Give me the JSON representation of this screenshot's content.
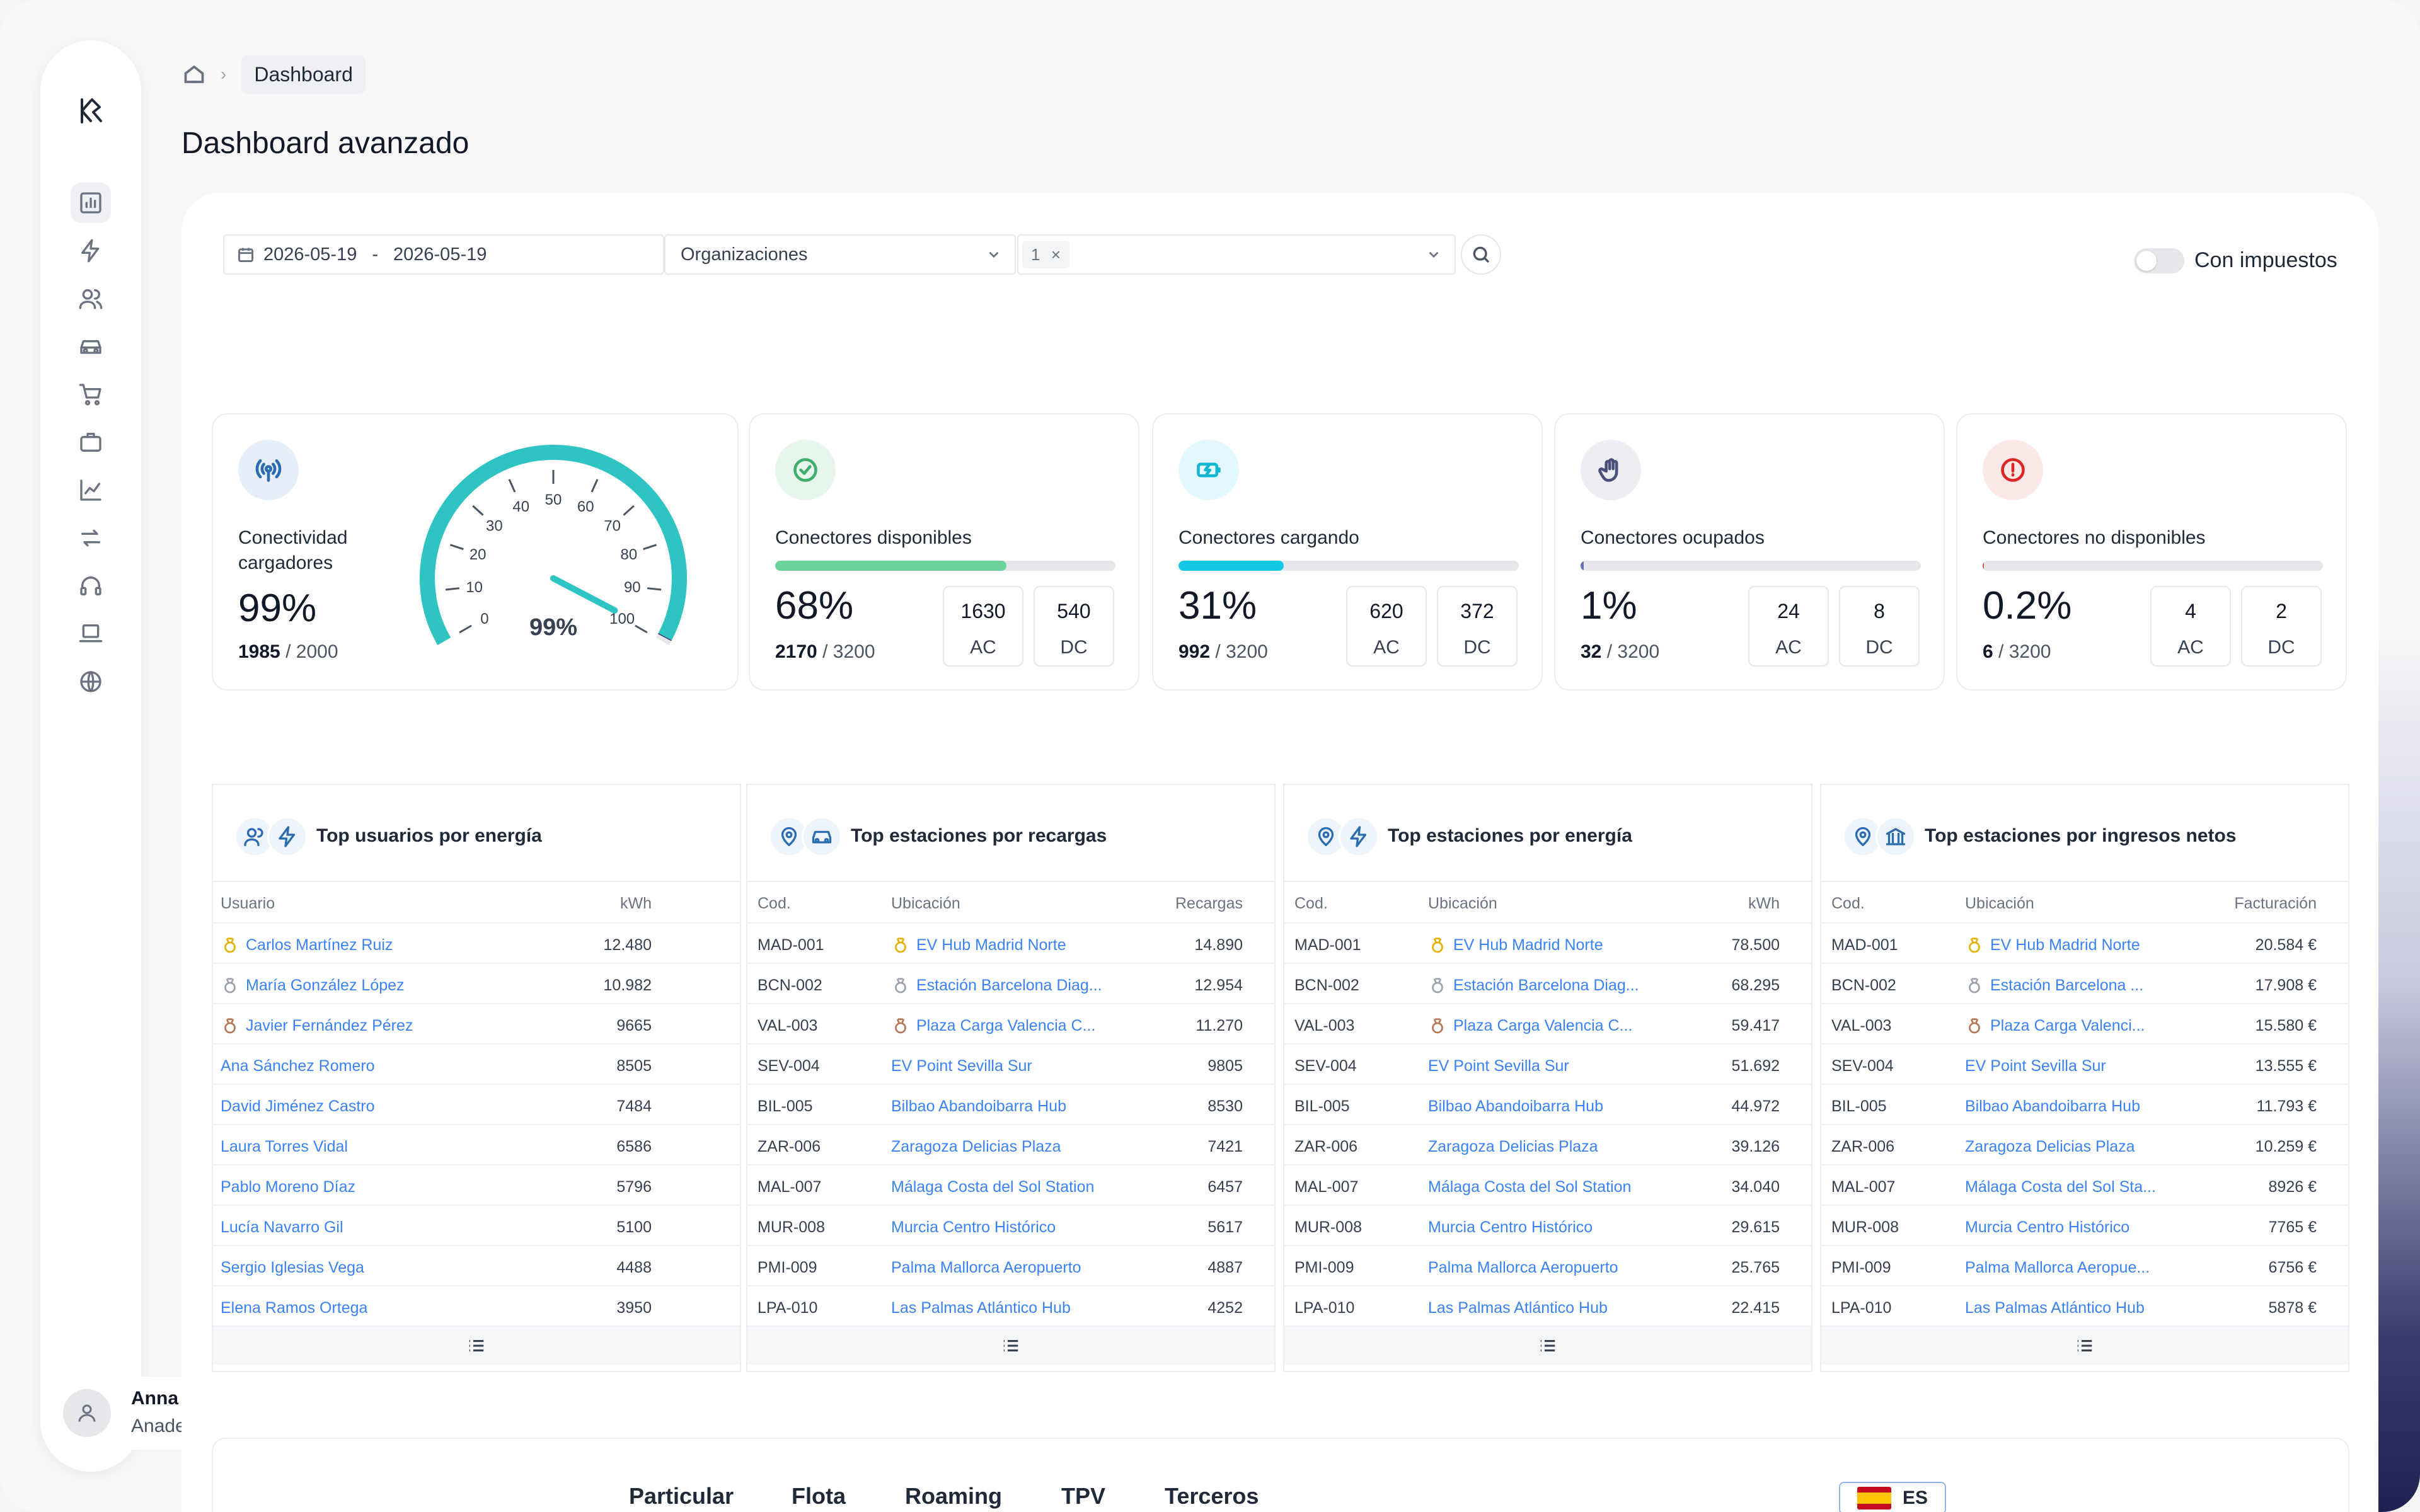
{
  "breadcrumb": {
    "current": "Dashboard"
  },
  "page": {
    "title": "Dashboard avanzado"
  },
  "filters": {
    "date_from": "2026-05-19",
    "date_sep": "-",
    "date_to": "2026-05-19",
    "organizations_placeholder": "Organizaciones",
    "selected_chip": "1",
    "tax_toggle_label": "Con impuestos",
    "tax_toggle_on": false
  },
  "user": {
    "name": "Anna de lucas",
    "email": "Anadelucas@kawat.io"
  },
  "sidebar": {
    "items": [
      "dashboard-icon",
      "bolt-icon",
      "users-icon",
      "car-icon",
      "cart-icon",
      "briefcase-icon",
      "chart-icon",
      "transfer-icon",
      "headset-icon",
      "laptop-icon",
      "globe-icon"
    ]
  },
  "cards": [
    {
      "label_1": "Conectividad",
      "label_2": "cargadores",
      "pct": "99%",
      "count": "1985",
      "total": "/ 2000",
      "gauge_value": 99,
      "gauge_label": "99%",
      "gauge_ticks": [
        "0",
        "10",
        "20",
        "30",
        "40",
        "50",
        "60",
        "70",
        "80",
        "90",
        "100"
      ],
      "color": "#2ec4c4"
    },
    {
      "label": "Conectores disponibles",
      "pct": "68%",
      "count": "2170",
      "total": "/ 3200",
      "bar": 0.68,
      "ac": "1630",
      "dc": "540",
      "ac_label": "AC",
      "dc_label": "DC",
      "color": "#6ad39a"
    },
    {
      "label": "Conectores cargando",
      "pct": "31%",
      "count": "992",
      "total": "/ 3200",
      "bar": 0.31,
      "ac": "620",
      "dc": "372",
      "ac_label": "AC",
      "dc_label": "DC",
      "color": "#13c8e6"
    },
    {
      "label": "Conectores ocupados",
      "pct": "1%",
      "count": "32",
      "total": "/ 3200",
      "bar": 0.01,
      "ac": "24",
      "dc": "8",
      "ac_label": "AC",
      "dc_label": "DC",
      "color": "#6b6fb8"
    },
    {
      "label": "Conectores no disponibles",
      "pct": "0.2%",
      "count": "6",
      "total": "/ 3200",
      "bar": 0.002,
      "ac": "4",
      "dc": "2",
      "ac_label": "AC",
      "dc_label": "DC",
      "color": "#ef4444"
    }
  ],
  "tables": [
    {
      "title": "Top usuarios por energía",
      "cols": [
        "Usuario",
        "kWh"
      ],
      "rows": [
        [
          "Carlos Martínez Ruiz",
          "12.480"
        ],
        [
          "María González López",
          "10.982"
        ],
        [
          "Javier Fernández Pérez",
          "9665"
        ],
        [
          "Ana Sánchez Romero",
          "8505"
        ],
        [
          "David Jiménez Castro",
          "7484"
        ],
        [
          "Laura Torres Vidal",
          "6586"
        ],
        [
          "Pablo Moreno Díaz",
          "5796"
        ],
        [
          "Lucía Navarro Gil",
          "5100"
        ],
        [
          "Sergio Iglesias Vega",
          "4488"
        ],
        [
          "Elena Ramos Ortega",
          "3950"
        ]
      ]
    },
    {
      "title": "Top estaciones por recargas",
      "cols": [
        "Cod.",
        "Ubicación",
        "Recargas"
      ],
      "rows": [
        [
          "MAD-001",
          "EV Hub Madrid Norte",
          "14.890"
        ],
        [
          "BCN-002",
          "Estación Barcelona Diag...",
          "12.954"
        ],
        [
          "VAL-003",
          "Plaza Carga Valencia C...",
          "11.270"
        ],
        [
          "SEV-004",
          "EV Point Sevilla Sur",
          "9805"
        ],
        [
          "BIL-005",
          "Bilbao Abandoibarra Hub",
          "8530"
        ],
        [
          "ZAR-006",
          "Zaragoza Delicias Plaza",
          "7421"
        ],
        [
          "MAL-007",
          "Málaga Costa del Sol Station",
          "6457"
        ],
        [
          "MUR-008",
          "Murcia Centro Histórico",
          "5617"
        ],
        [
          "PMI-009",
          "Palma Mallorca Aeropuerto",
          "4887"
        ],
        [
          "LPA-010",
          "Las Palmas Atlántico Hub",
          "4252"
        ]
      ]
    },
    {
      "title": "Top estaciones por energía",
      "cols": [
        "Cod.",
        "Ubicación",
        "kWh"
      ],
      "rows": [
        [
          "MAD-001",
          "EV Hub Madrid Norte",
          "78.500"
        ],
        [
          "BCN-002",
          "Estación Barcelona Diag...",
          "68.295"
        ],
        [
          "VAL-003",
          "Plaza Carga Valencia C...",
          "59.417"
        ],
        [
          "SEV-004",
          "EV Point Sevilla Sur",
          "51.692"
        ],
        [
          "BIL-005",
          "Bilbao Abandoibarra Hub",
          "44.972"
        ],
        [
          "ZAR-006",
          "Zaragoza Delicias Plaza",
          "39.126"
        ],
        [
          "MAL-007",
          "Málaga Costa del Sol Station",
          "34.040"
        ],
        [
          "MUR-008",
          "Murcia Centro Histórico",
          "29.615"
        ],
        [
          "PMI-009",
          "Palma Mallorca Aeropuerto",
          "25.765"
        ],
        [
          "LPA-010",
          "Las Palmas Atlántico Hub",
          "22.415"
        ]
      ]
    },
    {
      "title": "Top estaciones por ingresos netos",
      "cols": [
        "Cod.",
        "Ubicación",
        "Facturación"
      ],
      "rows": [
        [
          "MAD-001",
          "EV Hub Madrid Norte",
          "20.584 €"
        ],
        [
          "BCN-002",
          "Estación Barcelona ...",
          "17.908 €"
        ],
        [
          "VAL-003",
          "Plaza Carga Valenci...",
          "15.580 €"
        ],
        [
          "SEV-004",
          "EV Point Sevilla Sur",
          "13.555 €"
        ],
        [
          "BIL-005",
          "Bilbao Abandoibarra Hub",
          "11.793 €"
        ],
        [
          "ZAR-006",
          "Zaragoza Delicias Plaza",
          "10.259 €"
        ],
        [
          "MAL-007",
          "Málaga Costa del Sol Sta...",
          "8926 €"
        ],
        [
          "MUR-008",
          "Murcia Centro Histórico",
          "7765 €"
        ],
        [
          "PMI-009",
          "Palma Mallorca Aeropue...",
          "6756 €"
        ],
        [
          "LPA-010",
          "Las Palmas Atlántico Hub",
          "5878 €"
        ]
      ]
    }
  ],
  "bottom_tabs": [
    "Particular",
    "Flota",
    "Roaming",
    "TPV",
    "Terceros"
  ],
  "language": {
    "code": "ES"
  }
}
